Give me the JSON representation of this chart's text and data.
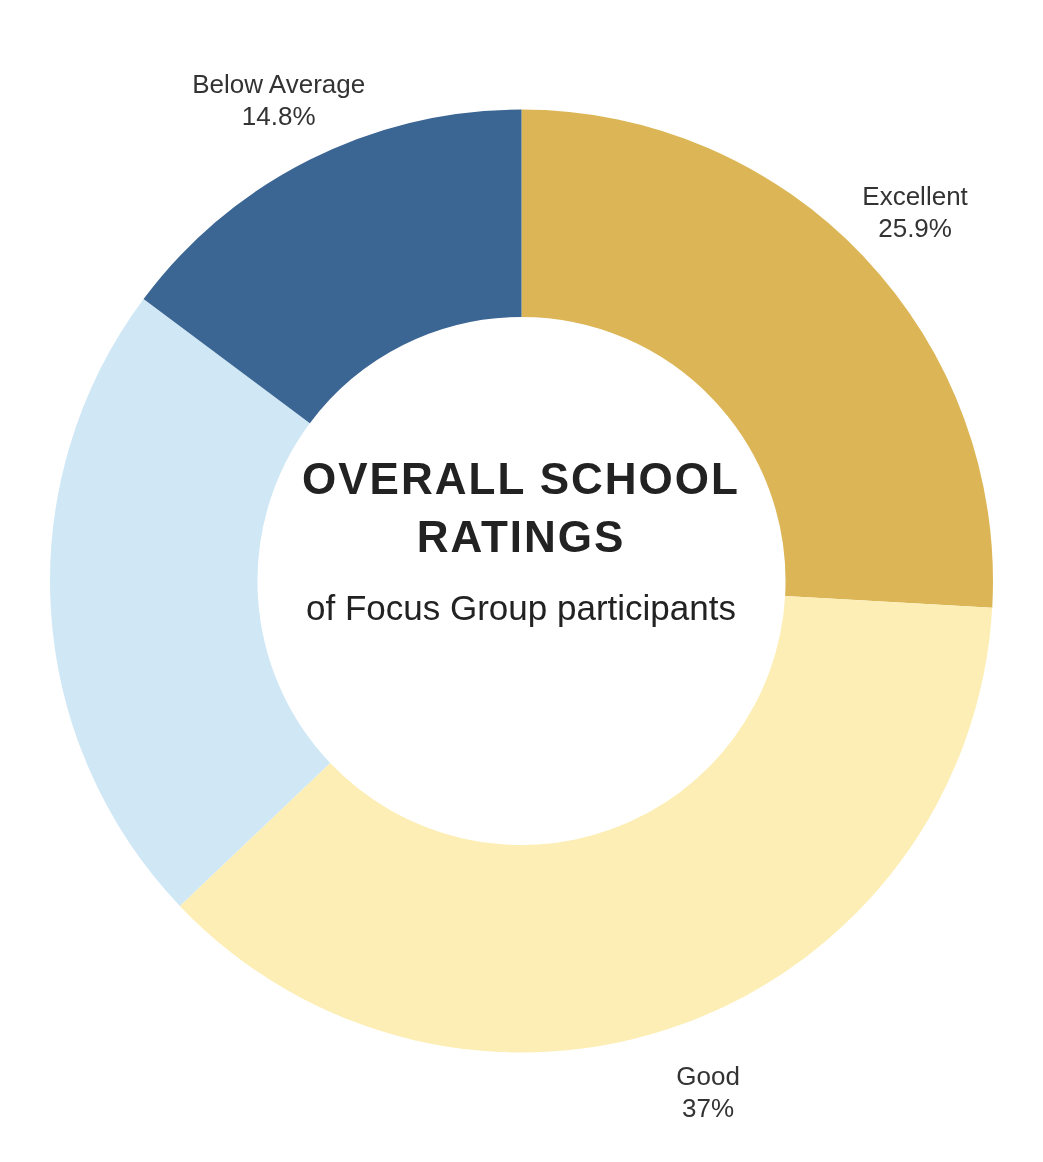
{
  "chart_data": {
    "type": "donut",
    "title": "OVERALL SCHOOL RATINGS",
    "subtitle": "of Focus Group participants",
    "categories": [
      "Excellent",
      "Good",
      null,
      "Below Average"
    ],
    "values": [
      25.9,
      37,
      22.3,
      14.8
    ],
    "value_labels": [
      "25.9%",
      "37%",
      null,
      "14.8%"
    ],
    "colors": [
      "#dcb656",
      "#fdeeb5",
      "#d0e8f5",
      "#3b6593"
    ]
  }
}
